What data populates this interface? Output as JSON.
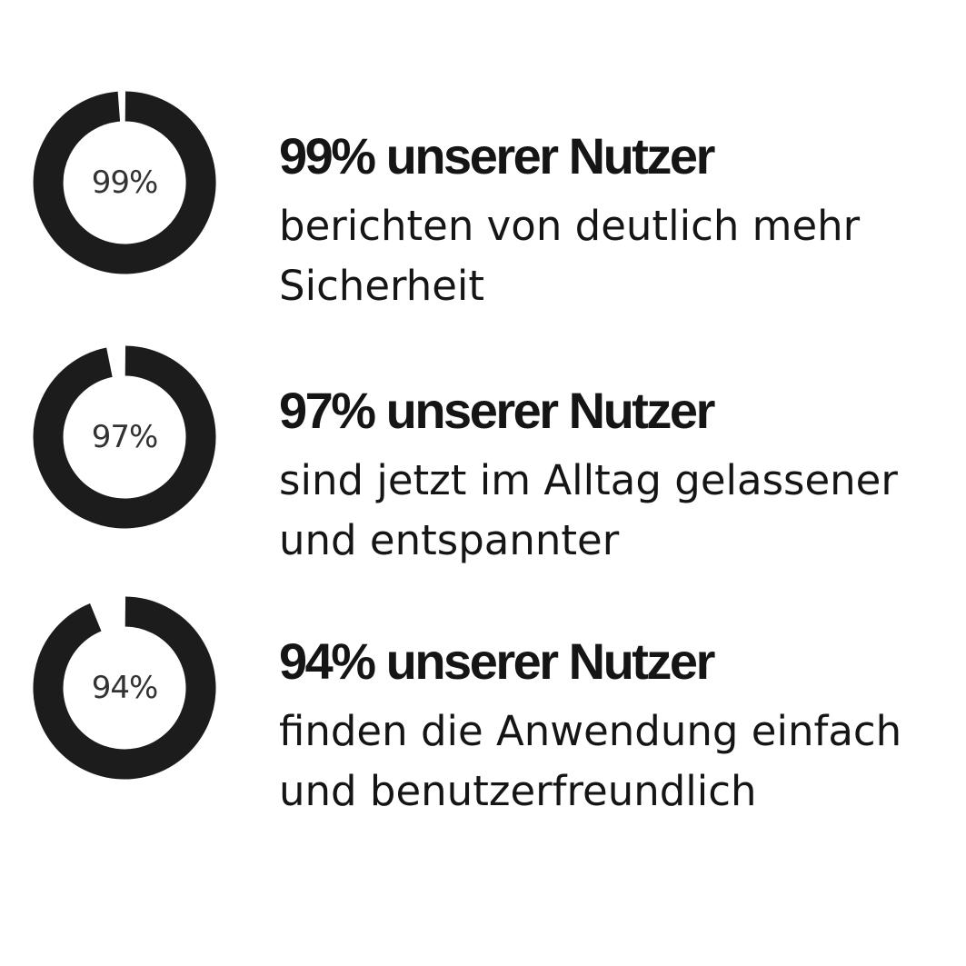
{
  "chart_data": [
    {
      "type": "pie",
      "variant": "donut",
      "value_percent": 99,
      "center_label": "99%",
      "headline": "99% unserer Nutzer",
      "description_lines": [
        "berichten von deutlich mehr",
        "Sicherheit"
      ]
    },
    {
      "type": "pie",
      "variant": "donut",
      "value_percent": 97,
      "center_label": "97%",
      "headline": "97% unserer Nutzer",
      "description_lines": [
        "sind jetzt im Alltag gelassener",
        "und entspannter"
      ]
    },
    {
      "type": "pie",
      "variant": "donut",
      "value_percent": 94,
      "center_label": "94%",
      "headline": "94% unserer Nutzer",
      "description_lines": [
        "finden die Anwendung einfach",
        "und benutzerfreundlich"
      ]
    }
  ],
  "colors": {
    "ring": "#1c1c1c",
    "background": "#ffffff"
  }
}
